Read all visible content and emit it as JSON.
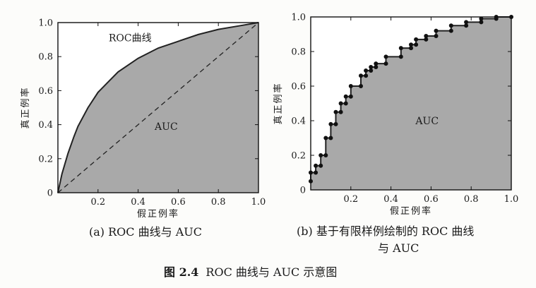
{
  "chart_data": [
    {
      "type": "area",
      "xlabel": "假正例率",
      "ylabel": "真正例率",
      "xlim": [
        0,
        1.0
      ],
      "ylim": [
        0,
        1.0
      ],
      "x_ticks": [
        "0.2",
        "0.4",
        "0.6",
        "0.8",
        "1.0"
      ],
      "y_ticks": [
        "0",
        "0.2",
        "0.4",
        "0.6",
        "0.8",
        "1.0"
      ],
      "series": [
        {
          "name": "ROC曲线",
          "style": "solid",
          "x": [
            0,
            0.02,
            0.05,
            0.08,
            0.1,
            0.15,
            0.2,
            0.25,
            0.3,
            0.4,
            0.5,
            0.6,
            0.7,
            0.8,
            0.9,
            1.0
          ],
          "y": [
            0,
            0.11,
            0.23,
            0.33,
            0.39,
            0.5,
            0.59,
            0.65,
            0.71,
            0.79,
            0.85,
            0.89,
            0.93,
            0.96,
            0.98,
            1.0
          ]
        },
        {
          "style": "dashed",
          "x": [
            0,
            1.0
          ],
          "y": [
            0,
            1.0
          ]
        }
      ],
      "annotations": [
        {
          "text": "ROC曲线",
          "x": 0.36,
          "y": 0.89
        },
        {
          "text": "AUC",
          "x": 0.54,
          "y": 0.37
        }
      ],
      "area_fill": "#a9a9a9",
      "grid": false,
      "legend": "none"
    },
    {
      "type": "line",
      "xlabel": "假正例率",
      "ylabel": "真正例率",
      "xlim": [
        0,
        1.0
      ],
      "ylim": [
        0,
        1.0
      ],
      "x_ticks": [
        "0.2",
        "0.4",
        "0.6",
        "0.8",
        "1.0"
      ],
      "y_ticks": [
        "0",
        "0.2",
        "0.4",
        "0.6",
        "0.8",
        "1.0"
      ],
      "series": [
        {
          "style": "step-with-markers",
          "points": [
            [
              0,
              0.05
            ],
            [
              0,
              0.1
            ],
            [
              0.025,
              0.1
            ],
            [
              0.025,
              0.14
            ],
            [
              0.05,
              0.14
            ],
            [
              0.05,
              0.2
            ],
            [
              0.075,
              0.2
            ],
            [
              0.075,
              0.3
            ],
            [
              0.1,
              0.3
            ],
            [
              0.1,
              0.38
            ],
            [
              0.125,
              0.38
            ],
            [
              0.125,
              0.45
            ],
            [
              0.15,
              0.45
            ],
            [
              0.15,
              0.5
            ],
            [
              0.175,
              0.5
            ],
            [
              0.175,
              0.54
            ],
            [
              0.2,
              0.54
            ],
            [
              0.2,
              0.6
            ],
            [
              0.25,
              0.6
            ],
            [
              0.25,
              0.66
            ],
            [
              0.275,
              0.66
            ],
            [
              0.275,
              0.69
            ],
            [
              0.3,
              0.69
            ],
            [
              0.3,
              0.71
            ],
            [
              0.325,
              0.71
            ],
            [
              0.325,
              0.73
            ],
            [
              0.375,
              0.73
            ],
            [
              0.375,
              0.77
            ],
            [
              0.45,
              0.77
            ],
            [
              0.45,
              0.82
            ],
            [
              0.5,
              0.82
            ],
            [
              0.5,
              0.84
            ],
            [
              0.525,
              0.84
            ],
            [
              0.525,
              0.87
            ],
            [
              0.575,
              0.87
            ],
            [
              0.575,
              0.89
            ],
            [
              0.625,
              0.89
            ],
            [
              0.625,
              0.92
            ],
            [
              0.7,
              0.92
            ],
            [
              0.7,
              0.95
            ],
            [
              0.775,
              0.95
            ],
            [
              0.775,
              0.97
            ],
            [
              0.85,
              0.97
            ],
            [
              0.85,
              0.99
            ],
            [
              0.925,
              0.99
            ],
            [
              0.925,
              1.0
            ],
            [
              1.0,
              1.0
            ]
          ]
        }
      ],
      "annotations": [
        {
          "text": "AUC",
          "x": 0.58,
          "y": 0.38
        }
      ],
      "area_fill": "#a9a9a9",
      "grid": false,
      "legend": "none"
    }
  ],
  "captions": {
    "a": "(a) ROC 曲线与 AUC",
    "b_line1": "(b) 基于有限样例绘制的 ROC 曲线",
    "b_line2": "与 AUC",
    "figure_label": "图 2.4",
    "figure_text": "ROC 曲线与 AUC 示意图"
  }
}
